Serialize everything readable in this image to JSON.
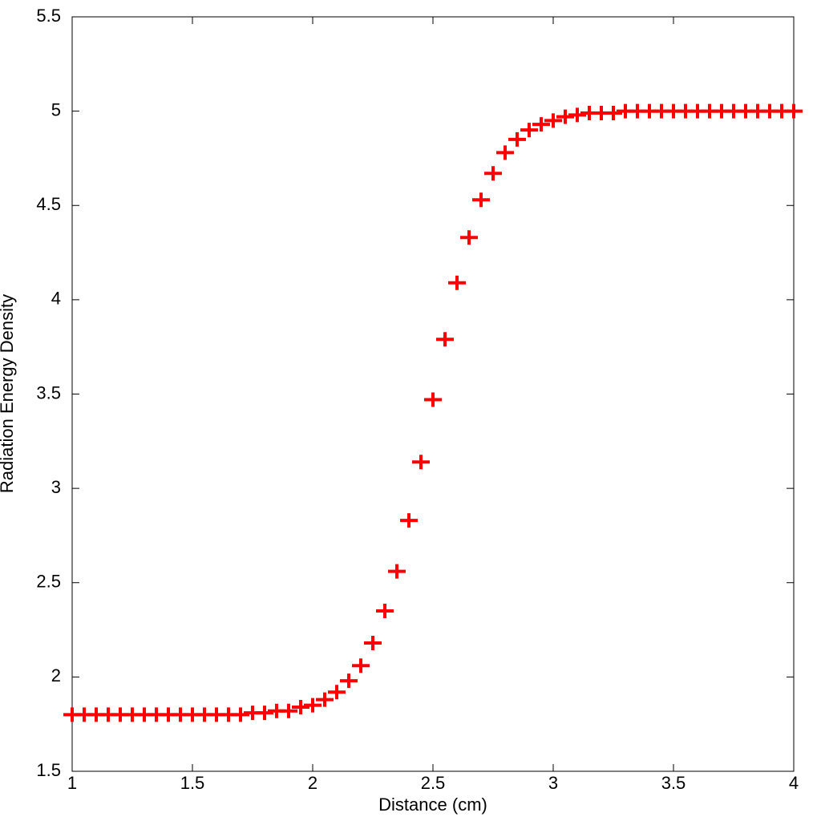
{
  "chart_data": {
    "type": "scatter",
    "xlabel": "Distance (cm)",
    "ylabel": "Radiation Energy Density",
    "marker": "+",
    "color": "#ff0000",
    "x": [
      1.0,
      1.05,
      1.1,
      1.15,
      1.2,
      1.25,
      1.3,
      1.35,
      1.4,
      1.45,
      1.5,
      1.55,
      1.6,
      1.65,
      1.7,
      1.75,
      1.8,
      1.85,
      1.9,
      1.95,
      2.0,
      2.05,
      2.1,
      2.15,
      2.2,
      2.25,
      2.3,
      2.35,
      2.4,
      2.45,
      2.5,
      2.55,
      2.6,
      2.65,
      2.7,
      2.75,
      2.8,
      2.85,
      2.9,
      2.95,
      3.0,
      3.05,
      3.1,
      3.15,
      3.2,
      3.25,
      3.3,
      3.35,
      3.4,
      3.45,
      3.5,
      3.55,
      3.6,
      3.65,
      3.7,
      3.75,
      3.8,
      3.85,
      3.9,
      3.95,
      4.0
    ],
    "values": [
      1.8,
      1.8,
      1.8,
      1.8,
      1.8,
      1.8,
      1.8,
      1.8,
      1.8,
      1.8,
      1.8,
      1.8,
      1.8,
      1.8,
      1.8,
      1.81,
      1.81,
      1.82,
      1.82,
      1.84,
      1.85,
      1.88,
      1.92,
      1.98,
      2.06,
      2.18,
      2.35,
      2.56,
      2.83,
      3.14,
      3.47,
      3.79,
      4.09,
      4.33,
      4.53,
      4.67,
      4.78,
      4.85,
      4.9,
      4.93,
      4.95,
      4.97,
      4.98,
      4.99,
      4.99,
      4.99,
      5.0,
      5.0,
      5.0,
      5.0,
      5.0,
      5.0,
      5.0,
      5.0,
      5.0,
      5.0,
      5.0,
      5.0,
      5.0,
      5.0,
      5.0
    ],
    "xlim": [
      1,
      4
    ],
    "xticks": [
      1,
      1.5,
      2,
      2.5,
      3,
      3.5,
      4
    ],
    "ylim": [
      1.5,
      5.5
    ],
    "yticks": [
      1.5,
      2,
      2.5,
      3,
      3.5,
      4,
      4.5,
      5,
      5.5
    ]
  }
}
